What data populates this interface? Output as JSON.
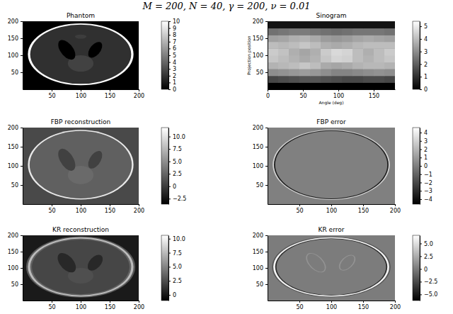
{
  "title": "M = 200, N = 40, γ = 200, ν = 0.01",
  "chart_data": [
    {
      "type": "heatmap",
      "title": "Phantom",
      "xlim": [
        0,
        200
      ],
      "ylim": [
        0,
        200
      ],
      "xticks": [
        50,
        100,
        150,
        200
      ],
      "yticks": [
        50,
        100,
        150,
        200
      ],
      "background": 0,
      "ellipses": [
        {
          "cx": 100,
          "cy": 103,
          "rx": 91,
          "ry": 91,
          "angle": 0,
          "value": 10
        },
        {
          "cx": 100,
          "cy": 103,
          "rx": 87,
          "ry": 87,
          "angle": 0,
          "value": 1.9
        },
        {
          "cx": 100,
          "cy": 76,
          "rx": 22,
          "ry": 24,
          "angle": 0,
          "value": 2.6
        },
        {
          "cx": 100,
          "cy": 155,
          "rx": 10,
          "ry": 6,
          "angle": 0,
          "value": 2.4
        },
        {
          "cx": 76,
          "cy": 116,
          "rx": 12,
          "ry": 30,
          "angle": 18,
          "value": 0
        },
        {
          "cx": 125,
          "cy": 116,
          "rx": 10,
          "ry": 24,
          "angle": -18,
          "value": 0
        }
      ],
      "colorbar": {
        "range": [
          0,
          10
        ],
        "ticks": [
          0,
          1,
          2,
          3,
          4,
          5,
          6,
          7,
          8,
          9,
          10
        ]
      }
    },
    {
      "type": "heatmap",
      "title": "Sinogram",
      "xlabel": "Angle (deg)",
      "ylabel": "Projection position",
      "xlim": [
        0,
        180
      ],
      "ylim": [
        0,
        200
      ],
      "xticks": [
        0,
        50,
        100,
        150
      ],
      "yticks": [
        50,
        100,
        150,
        200
      ],
      "background": 0,
      "x_edges": [
        0,
        15,
        30,
        45,
        60,
        75,
        90,
        105,
        120,
        135,
        150,
        165,
        180
      ],
      "y_edges": [
        0,
        20,
        40,
        60,
        80,
        100,
        120,
        140,
        160,
        180,
        200
      ],
      "z": [
        [
          0,
          0,
          0,
          0,
          0,
          0,
          0,
          0,
          0,
          0,
          0,
          0
        ],
        [
          1.5,
          1.6,
          1.7,
          1.8,
          1.8,
          1.7,
          1.6,
          1.5,
          1.5,
          1.6,
          1.6,
          1.5
        ],
        [
          3.0,
          3.1,
          3.2,
          3.3,
          3.2,
          3.0,
          2.8,
          2.8,
          2.9,
          3.0,
          3.1,
          3.0
        ],
        [
          3.8,
          3.9,
          4.0,
          4.2,
          4.0,
          3.6,
          3.5,
          3.6,
          3.8,
          3.9,
          3.9,
          3.8
        ],
        [
          4.2,
          4.0,
          3.8,
          3.6,
          3.8,
          4.2,
          4.5,
          4.4,
          4.0,
          3.8,
          4.0,
          4.2
        ],
        [
          4.3,
          4.1,
          3.7,
          3.5,
          3.7,
          4.3,
          4.6,
          4.5,
          4.0,
          3.7,
          4.0,
          4.3
        ],
        [
          4.0,
          3.9,
          4.0,
          4.2,
          4.0,
          3.7,
          3.6,
          3.7,
          3.9,
          4.0,
          4.0,
          4.0
        ],
        [
          3.4,
          3.5,
          3.7,
          3.8,
          3.6,
          3.3,
          3.2,
          3.3,
          3.5,
          3.6,
          3.5,
          3.4
        ],
        [
          2.4,
          2.5,
          2.6,
          2.6,
          2.5,
          2.4,
          2.3,
          2.4,
          2.5,
          2.5,
          2.5,
          2.4
        ],
        [
          0.4,
          0.4,
          0.4,
          0.4,
          0.4,
          0.4,
          0.4,
          0.4,
          0.4,
          0.4,
          0.4,
          0.4
        ]
      ],
      "colorbar": {
        "range": [
          0,
          5.4
        ],
        "ticks": [
          0,
          1,
          2,
          3,
          4,
          5
        ]
      }
    },
    {
      "type": "heatmap",
      "title": "FBP reconstruction",
      "xlim": [
        0,
        200
      ],
      "ylim": [
        0,
        200
      ],
      "xticks": [
        50,
        100,
        150,
        200
      ],
      "yticks": [
        50,
        100,
        150,
        200
      ],
      "background": 0.8,
      "ellipses": [
        {
          "cx": 100,
          "cy": 103,
          "rx": 91,
          "ry": 91,
          "angle": 0,
          "value": 10.5
        },
        {
          "cx": 100,
          "cy": 103,
          "rx": 88,
          "ry": 88,
          "angle": 0,
          "value": 2.2
        },
        {
          "cx": 100,
          "cy": 76,
          "rx": 22,
          "ry": 24,
          "angle": 0,
          "value": 2.8
        },
        {
          "cx": 76,
          "cy": 116,
          "rx": 12,
          "ry": 30,
          "angle": 18,
          "value": 0.3
        },
        {
          "cx": 125,
          "cy": 116,
          "rx": 10,
          "ry": 24,
          "angle": -18,
          "value": 0.3
        }
      ],
      "colorbar": {
        "range": [
          -3.6,
          11.8
        ],
        "ticks": [
          {
            "value": -2.5,
            "label": "−2.5"
          },
          0,
          2.5,
          {
            "value": 5,
            "label": "5.0"
          },
          7.5,
          {
            "value": 10,
            "label": "10.0"
          }
        ]
      }
    },
    {
      "type": "heatmap",
      "title": "FBP error",
      "xlim": [
        0,
        200
      ],
      "ylim": [
        0,
        200
      ],
      "xticks": [
        50,
        100,
        150,
        200
      ],
      "yticks": [
        50,
        100,
        150,
        200
      ],
      "background": 0,
      "ellipses": [
        {
          "cx": 100,
          "cy": 103,
          "rx": 92,
          "ry": 92,
          "angle": 0,
          "value": 3
        },
        {
          "cx": 100,
          "cy": 103,
          "rx": 90,
          "ry": 90,
          "angle": 0,
          "value": -3.5
        },
        {
          "cx": 100,
          "cy": 103,
          "rx": 88,
          "ry": 88,
          "angle": 0,
          "value": 0
        }
      ],
      "colorbar": {
        "range": [
          -4.6,
          4.6
        ],
        "ticks": [
          {
            "value": -4,
            "label": "−4"
          },
          {
            "value": -3,
            "label": "−3"
          },
          {
            "value": -2,
            "label": "−2"
          },
          {
            "value": -1,
            "label": "−1"
          },
          0,
          1,
          2,
          3,
          4
        ]
      }
    },
    {
      "type": "heatmap",
      "title": "KR reconstruction",
      "xlim": [
        0,
        200
      ],
      "ylim": [
        0,
        200
      ],
      "xticks": [
        50,
        100,
        150,
        200
      ],
      "yticks": [
        50,
        100,
        150,
        200
      ],
      "background": 0.2,
      "ellipses": [
        {
          "cx": 100,
          "cy": 103,
          "rx": 94,
          "ry": 94,
          "angle": 0,
          "value": 3
        },
        {
          "cx": 100,
          "cy": 103,
          "rx": 91,
          "ry": 91,
          "angle": 0,
          "value": 7.5
        },
        {
          "cx": 100,
          "cy": 103,
          "rx": 87,
          "ry": 87,
          "angle": 0,
          "value": 3.5
        },
        {
          "cx": 100,
          "cy": 103,
          "rx": 84,
          "ry": 84,
          "angle": 0,
          "value": 2.2
        },
        {
          "cx": 100,
          "cy": 76,
          "rx": 22,
          "ry": 24,
          "angle": 0,
          "value": 2.6
        },
        {
          "cx": 76,
          "cy": 116,
          "rx": 13,
          "ry": 31,
          "angle": 18,
          "value": 0.8
        },
        {
          "cx": 125,
          "cy": 116,
          "rx": 11,
          "ry": 25,
          "angle": -18,
          "value": 0.8
        }
      ],
      "colorbar": {
        "range": [
          -1,
          10.6
        ],
        "ticks": [
          0,
          2.5,
          {
            "value": 5,
            "label": "5.0"
          },
          7.5,
          {
            "value": 10,
            "label": "10.0"
          }
        ]
      }
    },
    {
      "type": "heatmap",
      "title": "KR error",
      "xlim": [
        0,
        200
      ],
      "ylim": [
        0,
        200
      ],
      "xticks": [
        50,
        100,
        150,
        200
      ],
      "yticks": [
        50,
        100,
        150,
        200
      ],
      "background": 0,
      "ellipses": [
        {
          "cx": 100,
          "cy": 103,
          "rx": 93,
          "ry": 93,
          "angle": 0,
          "value": -2
        },
        {
          "cx": 100,
          "cy": 103,
          "rx": 91,
          "ry": 91,
          "angle": 0,
          "value": 6
        },
        {
          "cx": 100,
          "cy": 103,
          "rx": 88,
          "ry": 88,
          "angle": 0,
          "value": -4
        },
        {
          "cx": 100,
          "cy": 103,
          "rx": 86,
          "ry": 86,
          "angle": 0,
          "value": 0
        },
        {
          "cx": 76,
          "cy": 116,
          "rx": 13,
          "ry": 31,
          "angle": 18,
          "value": 1.2
        },
        {
          "cx": 76,
          "cy": 116,
          "rx": 11,
          "ry": 29,
          "angle": 18,
          "value": 0
        },
        {
          "cx": 125,
          "cy": 116,
          "rx": 11,
          "ry": 25,
          "angle": -18,
          "value": 1.2
        },
        {
          "cx": 125,
          "cy": 116,
          "rx": 9,
          "ry": 23,
          "angle": -18,
          "value": 0
        }
      ],
      "colorbar": {
        "range": [
          -6.2,
          6.6
        ],
        "ticks": [
          {
            "value": -5,
            "label": "−5.0"
          },
          {
            "value": -2.5,
            "label": "−2.5"
          },
          0,
          2.5,
          {
            "value": 5,
            "label": "5.0"
          }
        ]
      }
    }
  ]
}
